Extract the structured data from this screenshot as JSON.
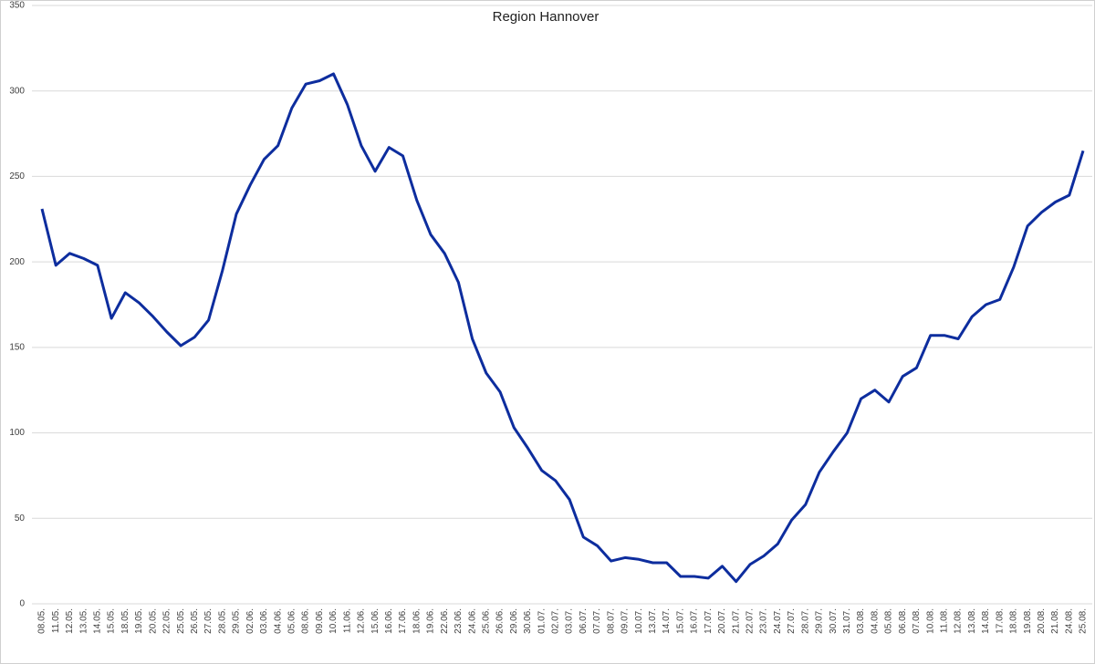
{
  "chart_data": {
    "type": "line",
    "title": "Region Hannover",
    "categories": [
      "08.05.",
      "11.05.",
      "12.05.",
      "13.05.",
      "14.05.",
      "15.05.",
      "18.05.",
      "19.05.",
      "20.05.",
      "22.05.",
      "25.05.",
      "26.05.",
      "27.05.",
      "28.05.",
      "29.05.",
      "02.06.",
      "03.06.",
      "04.06.",
      "05.06.",
      "08.06.",
      "09.06.",
      "10.06.",
      "11.06.",
      "12.06.",
      "15.06.",
      "16.06.",
      "17.06.",
      "18.06.",
      "19.06.",
      "22.06.",
      "23.06.",
      "24.06.",
      "25.06.",
      "26.06.",
      "29.06.",
      "30.06.",
      "01.07.",
      "02.07.",
      "03.07.",
      "06.07.",
      "07.07.",
      "08.07.",
      "09.07.",
      "10.07.",
      "13.07.",
      "14.07.",
      "15.07.",
      "16.07.",
      "17.07.",
      "20.07.",
      "21.07.",
      "22.07.",
      "23.07.",
      "24.07.",
      "27.07.",
      "28.07.",
      "29.07.",
      "30.07.",
      "31.07.",
      "03.08.",
      "04.08.",
      "05.08.",
      "06.08.",
      "07.08.",
      "10.08.",
      "11.08.",
      "12.08.",
      "13.08.",
      "14.08.",
      "17.08.",
      "18.08.",
      "19.08.",
      "20.08.",
      "21.08.",
      "24.08.",
      "25.08."
    ],
    "values": [
      231,
      198,
      205,
      202,
      198,
      167,
      182,
      176,
      168,
      159,
      151,
      156,
      166,
      195,
      228,
      245,
      260,
      268,
      290,
      304,
      306,
      310,
      292,
      268,
      253,
      267,
      262,
      236,
      216,
      205,
      188,
      155,
      135,
      124,
      103,
      91,
      78,
      72,
      61,
      39,
      34,
      25,
      27,
      26,
      24,
      24,
      16,
      16,
      15,
      22,
      13,
      23,
      28,
      35,
      49,
      58,
      77,
      89,
      100,
      120,
      125,
      118,
      133,
      138,
      157,
      157,
      155,
      168,
      175,
      178,
      197,
      221,
      229,
      235,
      239,
      265
    ],
    "color": "#0d2d9e",
    "ylim": [
      0,
      350
    ],
    "yticks": [
      0,
      50,
      100,
      150,
      200,
      250,
      300,
      350
    ],
    "grid": true
  }
}
